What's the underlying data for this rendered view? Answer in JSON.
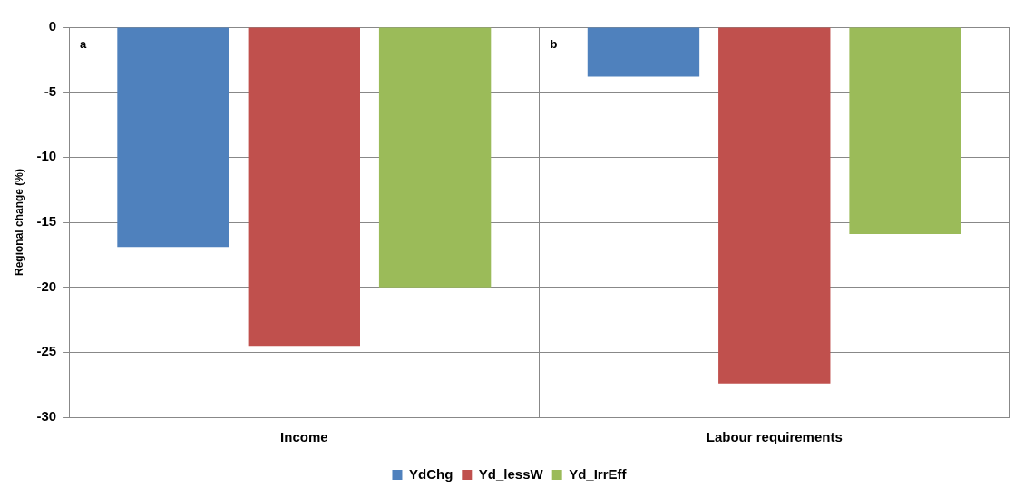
{
  "chart_data": {
    "type": "bar",
    "ylabel": "Regional change (%)",
    "categories": [
      "Income",
      "Labour requirements"
    ],
    "series": [
      {
        "name": "YdChg",
        "color": "#4f81bd",
        "values": [
          -16.9,
          -3.8
        ]
      },
      {
        "name": "Yd_lessW",
        "color": "#c0504d",
        "values": [
          -24.5,
          -27.4
        ]
      },
      {
        "name": "Yd_IrrEff",
        "color": "#9bbb59",
        "values": [
          -20.0,
          -15.9
        ]
      }
    ],
    "ylim": [
      -30,
      0
    ],
    "yticks": [
      -30,
      -25,
      -20,
      -15,
      -10,
      -5,
      0
    ],
    "grid": true,
    "legend": "bottom",
    "annotations": [
      "a",
      "b"
    ]
  }
}
